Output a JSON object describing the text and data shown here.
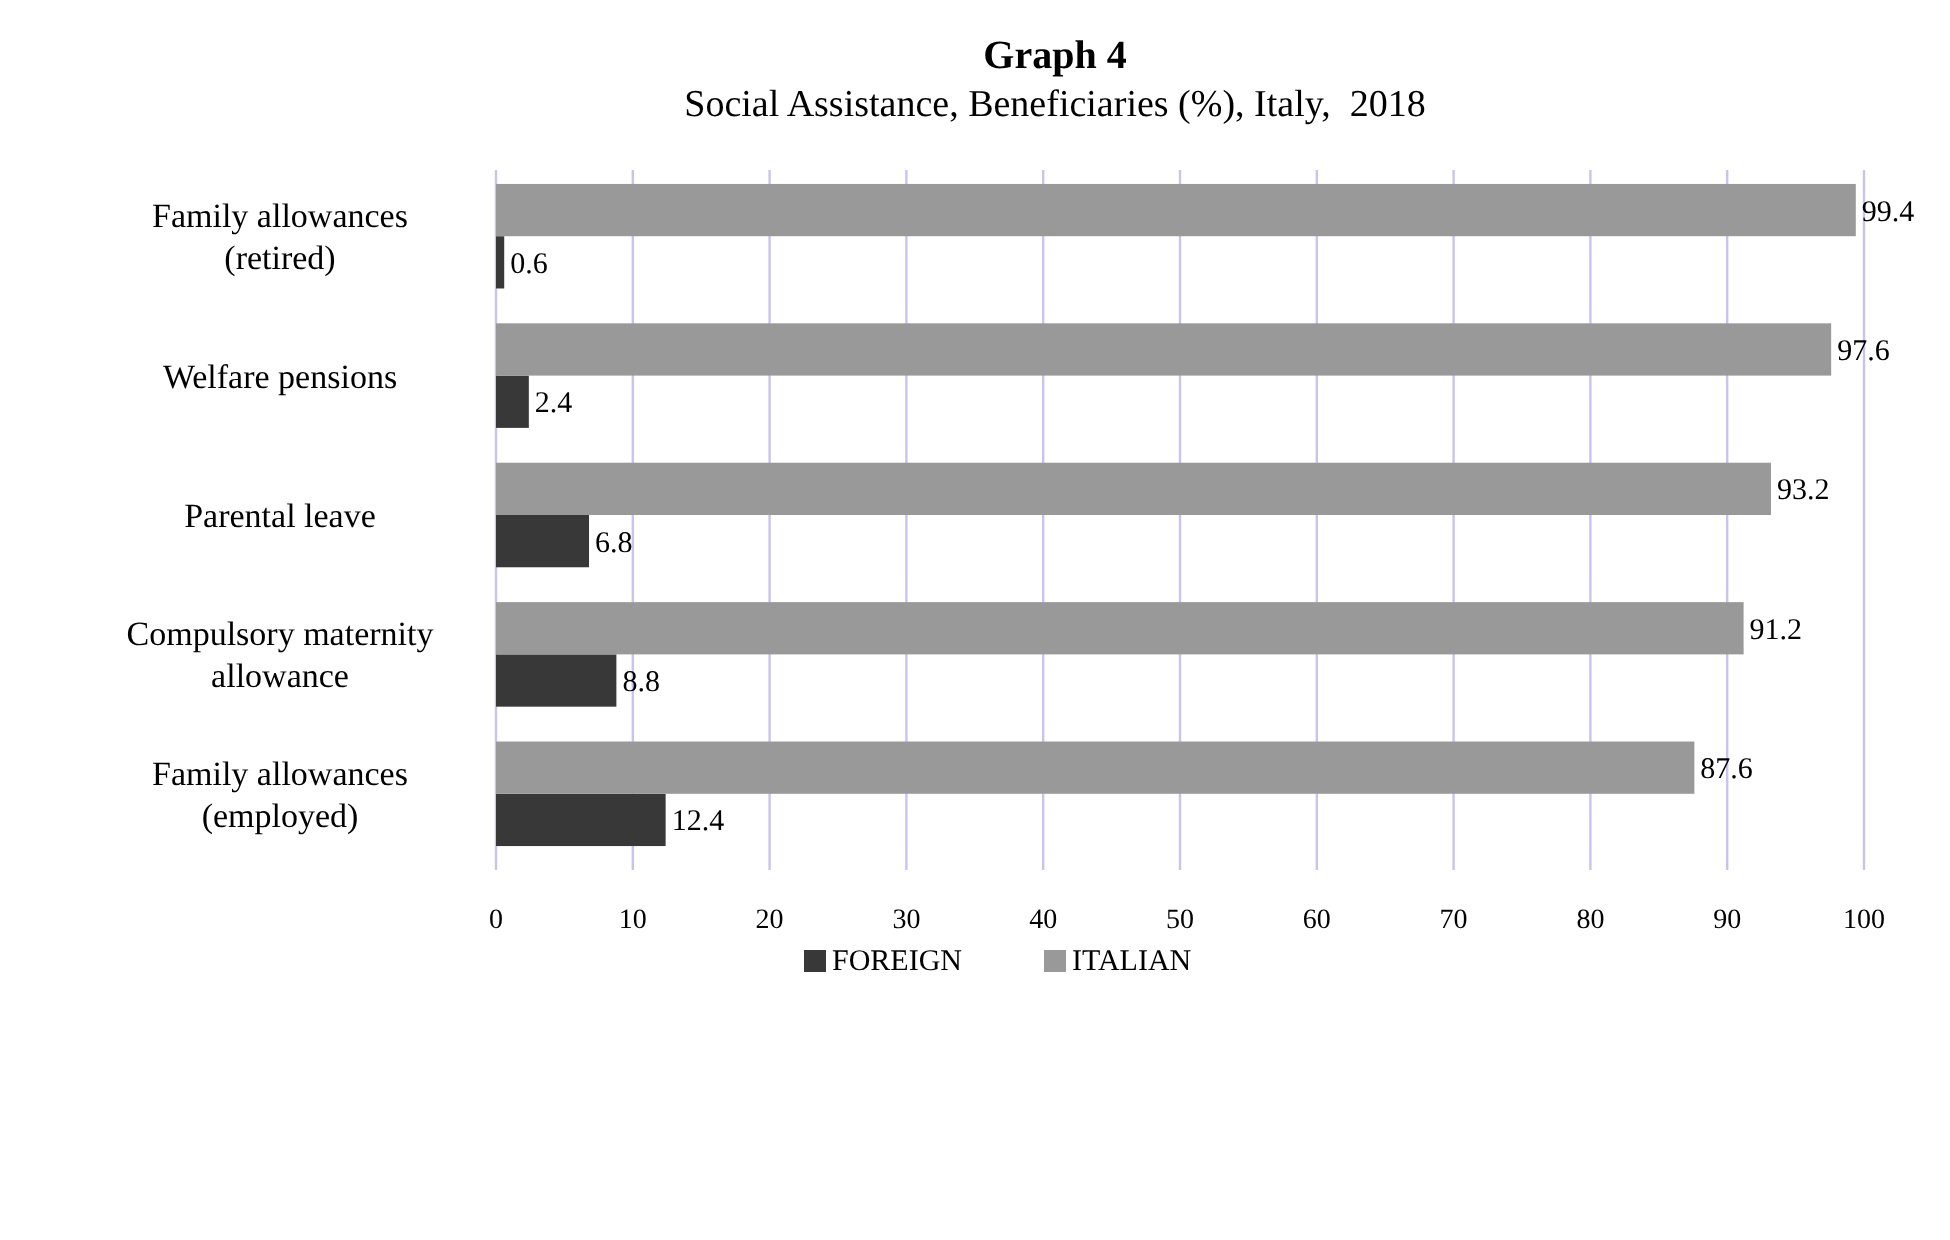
{
  "chart_data": {
    "type": "bar",
    "orientation": "horizontal",
    "title": "Graph 4",
    "subtitle": "Social Assistance, Beneficiaries (%), Italy,  2018",
    "categories": [
      "Family allowances (retired)",
      "Welfare pensions",
      "Parental leave",
      "Compulsory maternity allowance",
      "Family allowances (employed)"
    ],
    "series": [
      {
        "name": "FOREIGN",
        "color": "#383838",
        "values": [
          0.6,
          2.4,
          6.8,
          8.8,
          12.4
        ]
      },
      {
        "name": "ITALIAN",
        "color": "#999999",
        "values": [
          99.4,
          97.6,
          93.2,
          91.2,
          87.6
        ]
      }
    ],
    "xlim": [
      0,
      100
    ],
    "xticks": [
      0,
      10,
      20,
      30,
      40,
      50,
      60,
      70,
      80,
      90,
      100
    ],
    "grid": "x",
    "legend": "bottom",
    "data_labels": true
  }
}
